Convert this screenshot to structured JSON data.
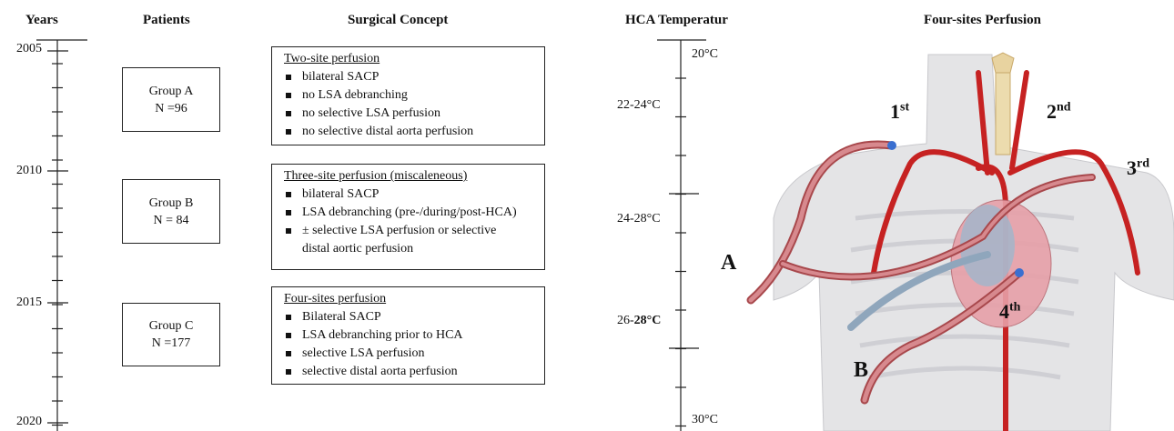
{
  "header": {
    "years": "Years",
    "patients": "Patients",
    "concept": "Surgical Concept",
    "temperature": "HCA Temperatur",
    "illustration": "Four-sites Perfusion"
  },
  "years": [
    "2005",
    "2010",
    "2015",
    "2020"
  ],
  "groups": [
    {
      "name": "Group A",
      "n": "N =96"
    },
    {
      "name": "Group B",
      "n": "N = 84"
    },
    {
      "name": "Group C",
      "n": "N =177"
    }
  ],
  "concepts": [
    {
      "title": "Two-site perfusion",
      "items": [
        "bilateral SACP",
        "no LSA debranching",
        "no selective LSA perfusion",
        "no selective distal aorta perfusion"
      ]
    },
    {
      "title": "Three-site perfusion (miscaleneous)",
      "items": [
        "bilateral SACP",
        "LSA debranching (pre-/during/post-HCA)",
        "± selective LSA perfusion or selective distal aortic perfusion"
      ]
    },
    {
      "title": "Four-sites perfusion",
      "items": [
        "Bilateral SACP",
        "LSA debranching prior to HCA",
        "selective LSA perfusion",
        "selective distal aorta perfusion"
      ]
    }
  ],
  "temperatures": {
    "top": "20°C",
    "range1": "22-24°C",
    "range2": "24-28°C",
    "range3_prefix": "26-",
    "range3_bold": "28°C",
    "bottom": "30°C"
  },
  "figure_labels": {
    "first": {
      "number": "1",
      "suffix": "st"
    },
    "second": {
      "number": "2",
      "suffix": "nd"
    },
    "third": {
      "number": "3",
      "suffix": "rd"
    },
    "fourth": {
      "number": "4",
      "suffix": "th"
    },
    "a": "A",
    "b": "B"
  }
}
